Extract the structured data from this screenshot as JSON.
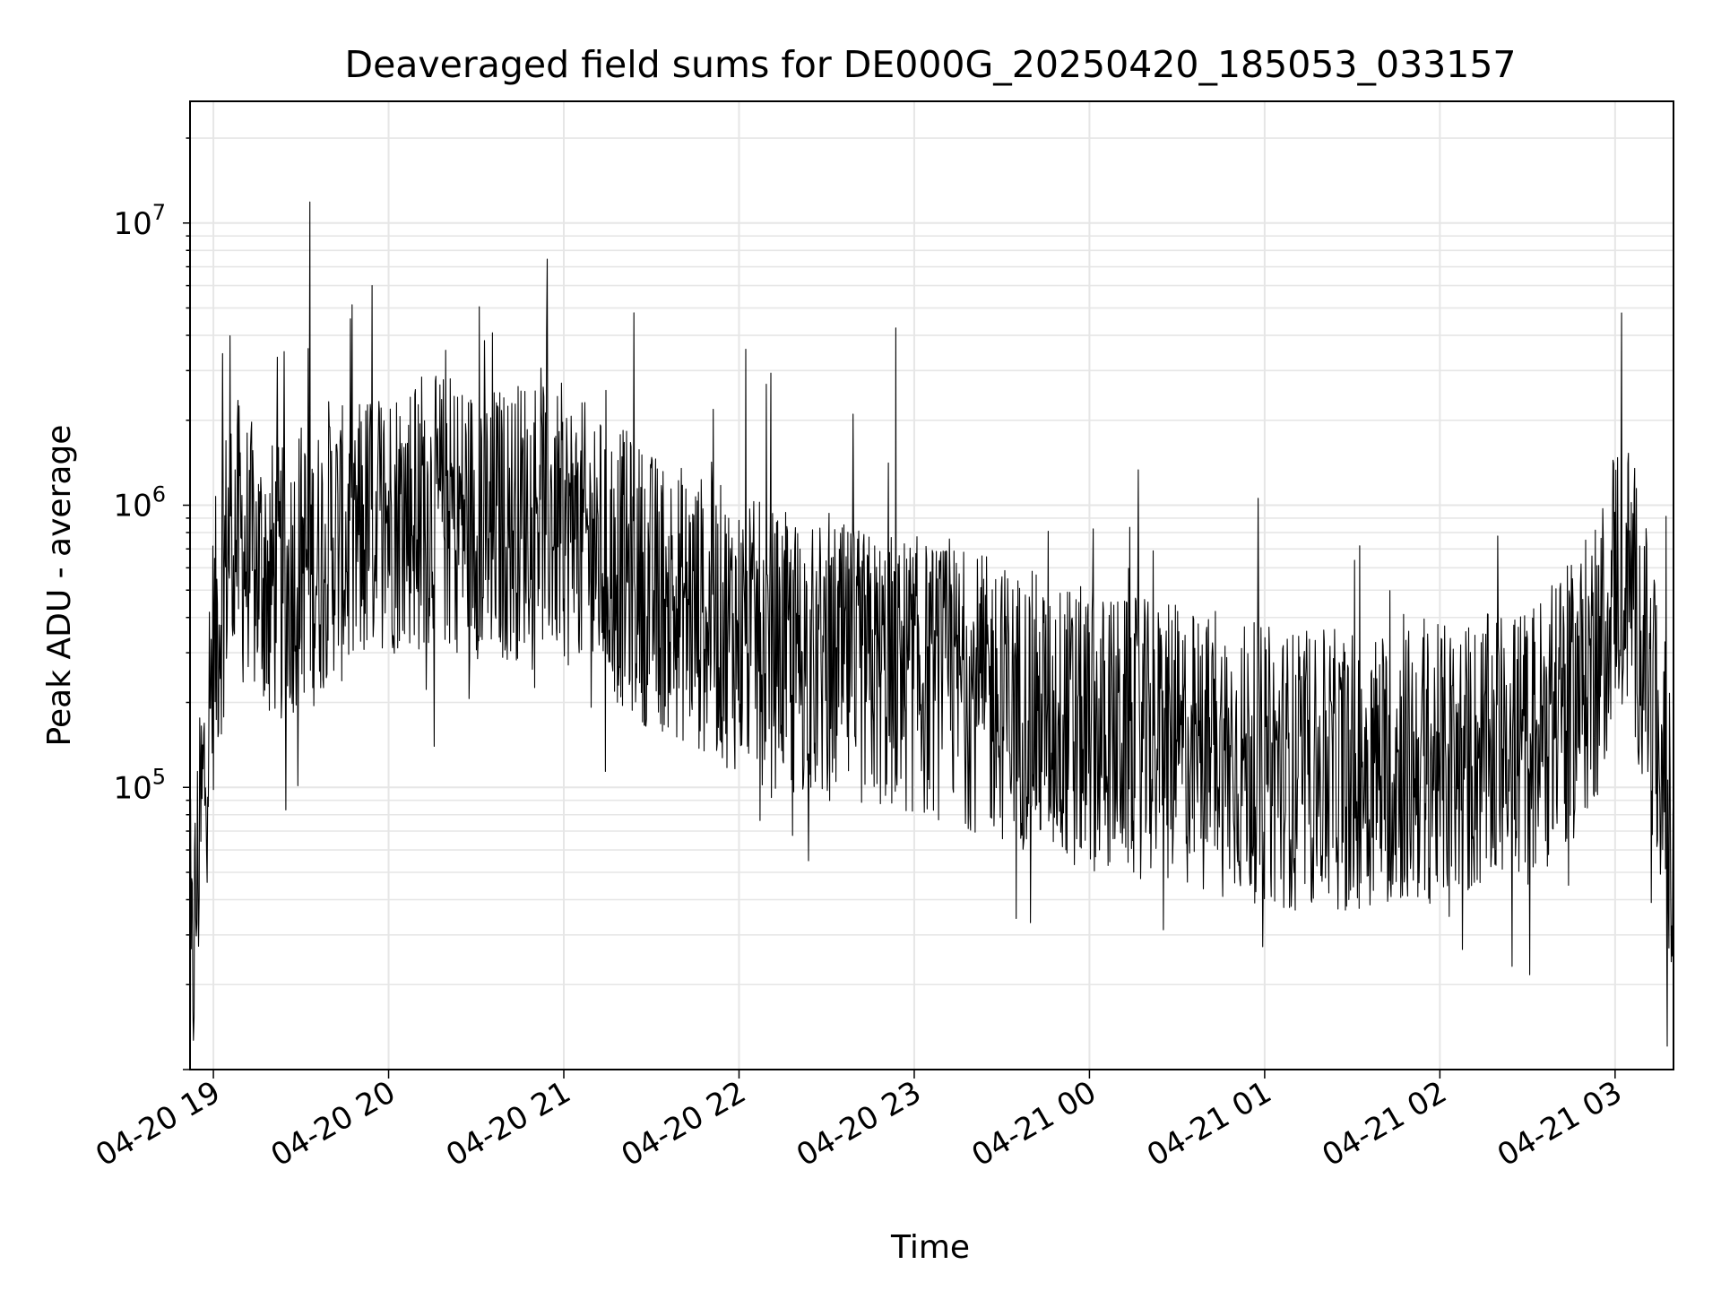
{
  "chart_data": {
    "type": "line",
    "title": "Deaveraged field sums for DE000G_20250420_185053_033157",
    "xlabel": "Time",
    "ylabel": "Peak ADU - average",
    "yscale": "log",
    "grid": true,
    "xlim": [
      "2025-04-20 18:52",
      "2025-04-21 03:20"
    ],
    "ylim": [
      10000,
      27000000
    ],
    "x_ticks": [
      "04-20 19",
      "04-20 20",
      "04-20 21",
      "04-20 22",
      "04-20 23",
      "04-21 00",
      "04-21 01",
      "04-21 02",
      "04-21 03"
    ],
    "y_ticks": [
      {
        "base": "10",
        "exp": "5",
        "value": 100000
      },
      {
        "base": "10",
        "exp": "6",
        "value": 1000000
      },
      {
        "base": "10",
        "exp": "7",
        "value": 10000000
      }
    ],
    "line_color": "#000000",
    "series": [
      {
        "x": [
          "2025-04-20 18:52",
          "2025-04-20 18:55",
          "2025-04-20 18:58",
          "2025-04-20 19:00",
          "2025-04-20 19:03",
          "2025-04-20 19:06",
          "2025-04-20 19:10",
          "2025-04-20 19:15",
          "2025-04-20 19:20",
          "2025-04-20 19:25",
          "2025-04-20 19:30",
          "2025-04-20 19:35",
          "2025-04-20 19:40",
          "2025-04-20 19:45",
          "2025-04-20 19:50",
          "2025-04-20 19:55",
          "2025-04-20 20:00",
          "2025-04-20 20:10",
          "2025-04-20 20:20",
          "2025-04-20 20:30",
          "2025-04-20 20:40",
          "2025-04-20 20:45",
          "2025-04-20 20:50",
          "2025-04-20 20:55",
          "2025-04-20 21:00",
          "2025-04-20 21:10",
          "2025-04-20 21:20",
          "2025-04-20 21:30",
          "2025-04-20 21:40",
          "2025-04-20 21:50",
          "2025-04-20 22:00",
          "2025-04-20 22:15",
          "2025-04-20 22:30",
          "2025-04-20 22:45",
          "2025-04-20 23:00",
          "2025-04-20 23:15",
          "2025-04-20 23:30",
          "2025-04-20 23:45",
          "2025-04-21 00:00",
          "2025-04-21 00:15",
          "2025-04-21 00:30",
          "2025-04-21 00:45",
          "2025-04-21 01:00",
          "2025-04-21 01:15",
          "2025-04-21 01:30",
          "2025-04-21 01:45",
          "2025-04-21 02:00",
          "2025-04-21 02:15",
          "2025-04-21 02:30",
          "2025-04-21 02:45",
          "2025-04-21 02:55",
          "2025-04-21 03:00",
          "2025-04-21 03:05",
          "2025-04-21 03:10",
          "2025-04-21 03:15",
          "2025-04-21 03:20"
        ],
        "y": [
          15000,
          60000,
          150000,
          300000,
          500000,
          900000,
          700000,
          600000,
          550000,
          500000,
          650000,
          600000,
          800000,
          700000,
          750000,
          900000,
          900000,
          1000000,
          950000,
          900000,
          850000,
          900000,
          1100000,
          900000,
          850000,
          700000,
          600000,
          500000,
          450000,
          400000,
          350000,
          300000,
          280000,
          260000,
          250000,
          230000,
          200000,
          180000,
          160000,
          150000,
          140000,
          130000,
          120000,
          115000,
          115000,
          120000,
          120000,
          130000,
          140000,
          200000,
          300000,
          600000,
          550000,
          300000,
          130000,
          50000
        ]
      }
    ]
  }
}
